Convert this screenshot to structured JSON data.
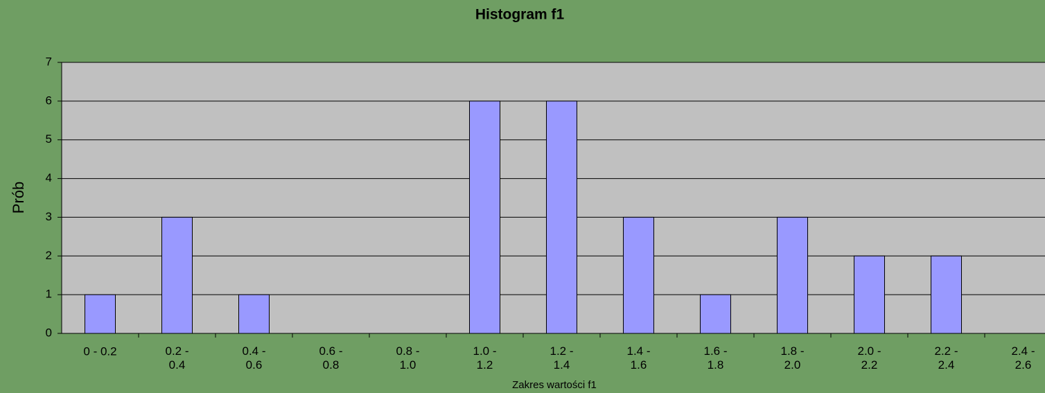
{
  "chart_data": {
    "type": "bar",
    "title": "Histogram f1",
    "x_label": "Zakres wartości f1",
    "y_label": "Prób",
    "categories": [
      "0 - 0.2",
      "0.2 - 0.4",
      "0.4 - 0.6",
      "0.6 - 0.8",
      "0.8 - 1.0",
      "1.0 - 1.2",
      "1.2 - 1.4",
      "1.4 - 1.6",
      "1.6 - 1.8",
      "1.8 - 2.0",
      "2.0 - 2.2",
      "2.2 - 2.4",
      "2.4 - 2.6"
    ],
    "values": [
      1,
      3,
      1,
      0,
      0,
      6,
      6,
      3,
      1,
      3,
      2,
      2,
      0
    ],
    "color": "#9999ff",
    "plot_color": "#c0c0c0",
    "ylim": [
      0,
      7
    ],
    "yticks": [
      0,
      1,
      2,
      3,
      4,
      5,
      6,
      7
    ],
    "grid": true
  }
}
